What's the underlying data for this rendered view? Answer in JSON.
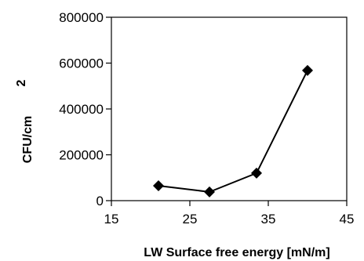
{
  "chart_data": {
    "type": "line",
    "title": "",
    "xlabel": "LW Surface free energy [mN/m]",
    "ylabel": "CFU/cm",
    "ylabel_superscript": "2",
    "xlim": [
      15,
      45
    ],
    "ylim": [
      0,
      800000
    ],
    "xticks": [
      "15",
      "25",
      "35",
      "45"
    ],
    "yticks": [
      "0",
      "200000",
      "400000",
      "600000",
      "800000"
    ],
    "grid": false,
    "legend": "none",
    "marker": "diamond",
    "line_color": "#000000",
    "x": [
      21,
      27.5,
      33.5,
      40
    ],
    "series": [
      {
        "values": [
          65000,
          38000,
          120000,
          568000
        ]
      }
    ]
  }
}
